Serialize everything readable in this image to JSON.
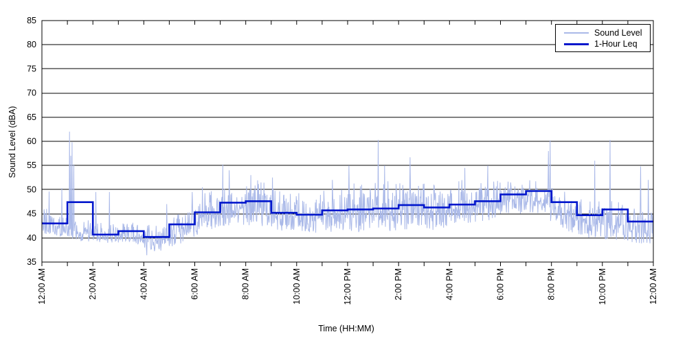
{
  "figure": {
    "xlabel": "Time (HH:MM)",
    "ylabel": "Sound Level (dBA)"
  },
  "legend": {
    "items": [
      {
        "label": "Sound Level",
        "color": "#a9b8e8",
        "line_weight": "thin"
      },
      {
        "label": "1-Hour Leq",
        "color": "#0016cc",
        "line_weight": "thick"
      }
    ]
  },
  "chart_data": {
    "type": "line",
    "title": "",
    "xlabel": "Time (HH:MM)",
    "ylabel": "Sound Level (dBA)",
    "ylim": [
      35,
      85
    ],
    "y_tick_step": 5,
    "y_ticks": [
      35,
      40,
      45,
      50,
      55,
      60,
      65,
      70,
      75,
      80,
      85
    ],
    "x_range_hours": [
      0,
      24
    ],
    "x_minor_tick_every_hours": 1,
    "x_label_every_hours": 2,
    "x_tick_labels": [
      "12:00 AM",
      "2:00 AM",
      "4:00 AM",
      "6:00 AM",
      "8:00 AM",
      "10:00 AM",
      "12:00 PM",
      "2:00 PM",
      "4:00 PM",
      "6:00 PM",
      "8:00 PM",
      "10:00 PM",
      "12:00 AM"
    ],
    "grid": "horizontal-solid-black",
    "legend_position": "top-right",
    "series": [
      {
        "name": "Sound Level",
        "type": "noisy_line",
        "color": "#a9b8e8",
        "stroke_width": 1,
        "note": "per-minute sound level; reconstructed from per-hour min/max envelope plus visible spikes",
        "hourly_band_dba": [
          [
            40,
            46.5
          ],
          [
            39,
            44
          ],
          [
            38.5,
            43
          ],
          [
            39,
            43.5
          ],
          [
            36.5,
            42.5
          ],
          [
            38.5,
            46
          ],
          [
            41,
            50
          ],
          [
            42,
            52
          ],
          [
            42,
            52
          ],
          [
            40.5,
            50
          ],
          [
            40,
            49.5
          ],
          [
            40.5,
            51
          ],
          [
            40.5,
            51.5
          ],
          [
            40.5,
            52
          ],
          [
            41,
            52
          ],
          [
            41,
            51
          ],
          [
            42,
            52
          ],
          [
            43,
            52.5
          ],
          [
            44.5,
            52
          ],
          [
            44.5,
            52
          ],
          [
            41,
            50
          ],
          [
            39.5,
            48
          ],
          [
            39,
            48
          ],
          [
            38,
            46
          ]
        ],
        "spikes_hour_dba": [
          [
            0.28,
            49.6
          ],
          [
            0.78,
            50.3
          ],
          [
            1.08,
            62.0
          ],
          [
            1.13,
            57.0
          ],
          [
            1.18,
            59.8
          ],
          [
            1.25,
            55.2
          ],
          [
            2.12,
            49.5
          ],
          [
            2.65,
            49.5
          ],
          [
            4.12,
            36.4
          ],
          [
            4.9,
            47.0
          ],
          [
            5.9,
            49.5
          ],
          [
            6.3,
            50.5
          ],
          [
            7.1,
            55.2
          ],
          [
            7.35,
            54.0
          ],
          [
            8.2,
            53.0
          ],
          [
            9.05,
            52.5
          ],
          [
            11.4,
            52.0
          ],
          [
            12.05,
            55.0
          ],
          [
            13.2,
            60.3
          ],
          [
            13.45,
            55.0
          ],
          [
            14.45,
            56.7
          ],
          [
            16.6,
            54.5
          ],
          [
            17.5,
            55.0
          ],
          [
            19.88,
            58.0
          ],
          [
            19.95,
            60.2
          ],
          [
            21.7,
            56.0
          ],
          [
            22.3,
            60.3
          ],
          [
            23.5,
            54.8
          ],
          [
            23.8,
            52.0
          ]
        ]
      },
      {
        "name": "1-Hour Leq",
        "type": "step",
        "color": "#0016cc",
        "stroke_width": 2.6,
        "hourly_leq_dba": [
          43.0,
          47.4,
          40.7,
          41.4,
          40.2,
          42.8,
          45.3,
          47.3,
          47.6,
          45.2,
          44.8,
          45.7,
          45.9,
          46.1,
          46.8,
          46.3,
          46.9,
          47.6,
          49.0,
          49.7,
          47.4,
          44.7,
          45.9,
          43.4
        ]
      }
    ]
  }
}
